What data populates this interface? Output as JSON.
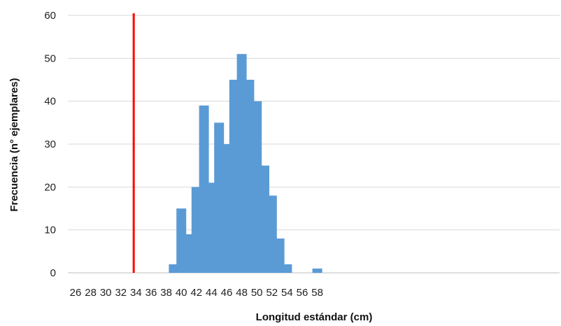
{
  "chart_data": {
    "type": "bar",
    "xlabel": "Longitud estándar (cm)",
    "ylabel": "Frecuencia (n° ejemplares)",
    "xlim": [
      26,
      58
    ],
    "ylim": [
      0,
      60
    ],
    "x_ticks": [
      "26",
      "28",
      "30",
      "32",
      "34",
      "36",
      "38",
      "40",
      "42",
      "44",
      "46",
      "48",
      "50",
      "52",
      "54",
      "56",
      "58"
    ],
    "y_ticks": [
      "0",
      "10",
      "20",
      "30",
      "40",
      "50",
      "60"
    ],
    "grid": true,
    "legend": "none",
    "bar_color": "#5B9BD5",
    "series": [
      {
        "x": [
          39,
          40,
          41,
          42,
          43,
          44,
          45,
          46,
          47,
          48,
          49,
          50,
          51,
          52,
          53,
          54,
          58
        ],
        "values": [
          2,
          15,
          9,
          20,
          39,
          21,
          35,
          30,
          45,
          51,
          45,
          40,
          25,
          18,
          8,
          2,
          1
        ]
      }
    ],
    "reference_line": {
      "x": 33.7,
      "color": "#FF0000"
    }
  }
}
